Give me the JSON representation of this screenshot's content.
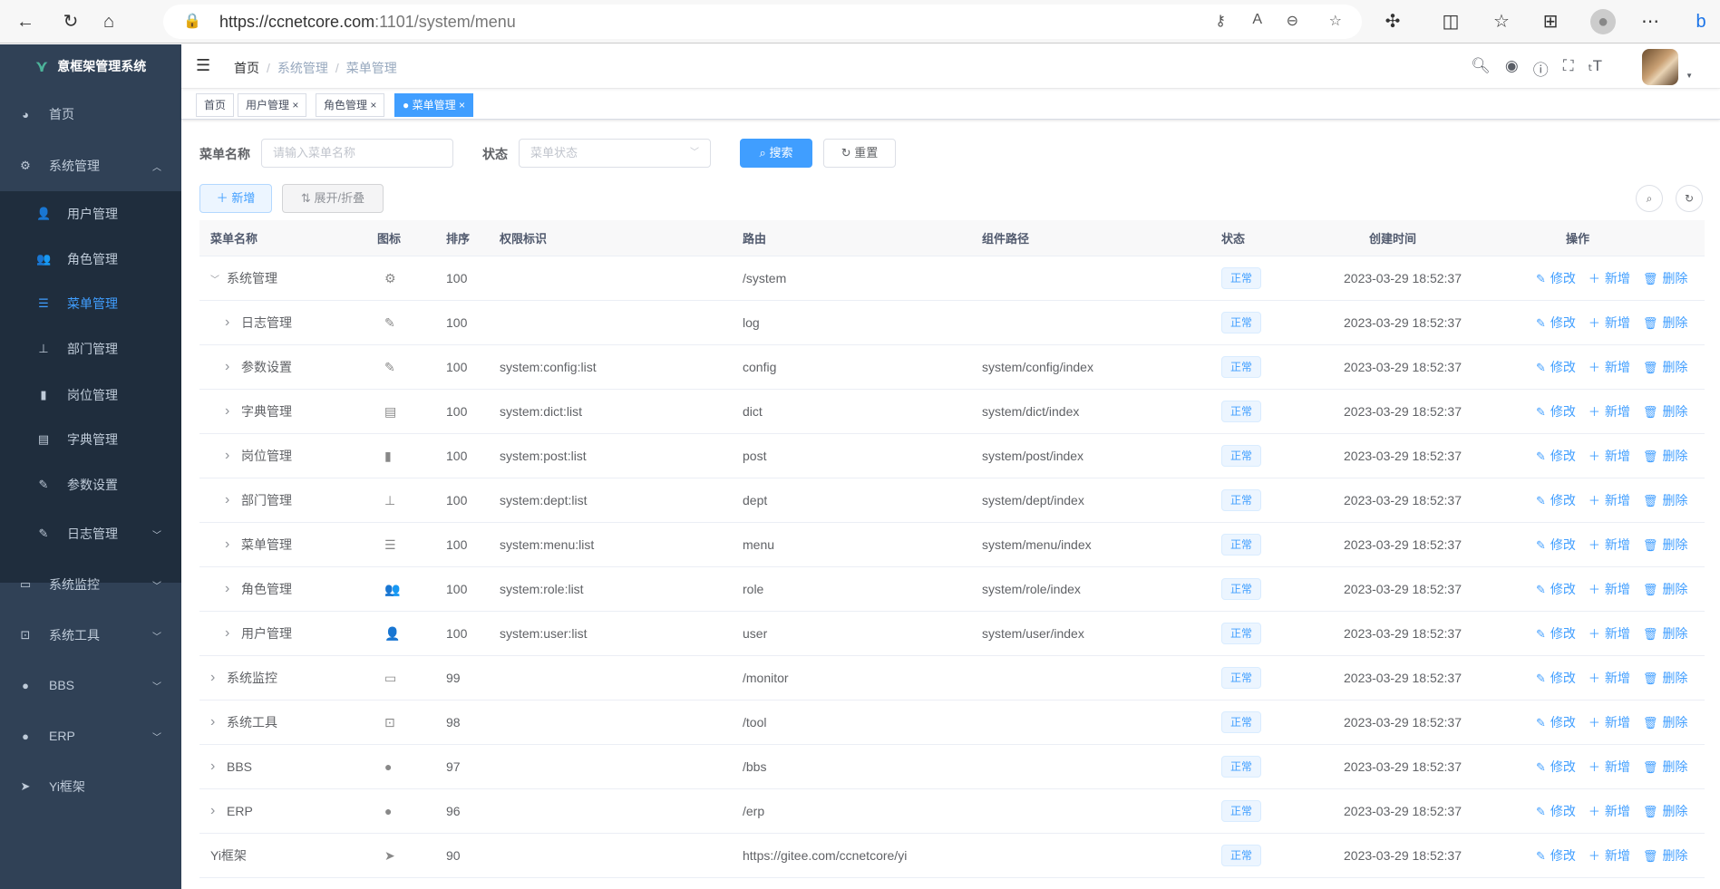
{
  "browser": {
    "url_host": "https://ccnetcore.com",
    "url_path": ":1101/system/menu"
  },
  "sidebar": {
    "title": "意框架管理系统",
    "items": [
      {
        "label": "首页",
        "icon": "dashboard-icon",
        "glyph": "◕",
        "level": "top",
        "arrow": ""
      },
      {
        "label": "系统管理",
        "icon": "gear-icon",
        "glyph": "⚙",
        "level": "top",
        "arrow": "︿",
        "open": true
      },
      {
        "label": "用户管理",
        "icon": "user-icon",
        "glyph": "👤",
        "level": "child",
        "arrow": ""
      },
      {
        "label": "角色管理",
        "icon": "peoples-icon",
        "glyph": "👥",
        "level": "child",
        "arrow": ""
      },
      {
        "label": "菜单管理",
        "icon": "tree-table-icon",
        "glyph": "☰",
        "level": "child",
        "arrow": "",
        "active": true
      },
      {
        "label": "部门管理",
        "icon": "tree-icon",
        "glyph": "⊥",
        "level": "child",
        "arrow": ""
      },
      {
        "label": "岗位管理",
        "icon": "post-icon",
        "glyph": "▮",
        "level": "child",
        "arrow": ""
      },
      {
        "label": "字典管理",
        "icon": "dict-icon",
        "glyph": "▤",
        "level": "child",
        "arrow": ""
      },
      {
        "label": "参数设置",
        "icon": "edit-icon",
        "glyph": "✎",
        "level": "child",
        "arrow": ""
      },
      {
        "label": "日志管理",
        "icon": "log-icon",
        "glyph": "✎",
        "level": "child",
        "arrow": "﹀"
      },
      {
        "label": "系统监控",
        "icon": "monitor-icon",
        "glyph": "▭",
        "level": "top",
        "arrow": "﹀"
      },
      {
        "label": "系统工具",
        "icon": "tool-icon",
        "glyph": "⊡",
        "level": "top",
        "arrow": "﹀"
      },
      {
        "label": "BBS",
        "icon": "globe-icon",
        "glyph": "●",
        "level": "top",
        "arrow": "﹀"
      },
      {
        "label": "ERP",
        "icon": "globe-icon",
        "glyph": "●",
        "level": "top",
        "arrow": "﹀"
      },
      {
        "label": "Yi框架",
        "icon": "send-icon",
        "glyph": "➤",
        "level": "top",
        "arrow": ""
      }
    ]
  },
  "header": {
    "breadcrumb": [
      "首页",
      "系统管理",
      "菜单管理"
    ]
  },
  "tags": [
    {
      "label": "首页",
      "closable": false
    },
    {
      "label": "用户管理",
      "closable": true
    },
    {
      "label": "角色管理",
      "closable": true
    },
    {
      "label": "菜单管理",
      "closable": true,
      "active": true
    }
  ],
  "search": {
    "name_label": "菜单名称",
    "name_placeholder": "请输入菜单名称",
    "status_label": "状态",
    "status_placeholder": "菜单状态",
    "search_btn": "搜索",
    "reset_btn": "重置"
  },
  "toolbar": {
    "add_btn": "新增",
    "toggle_btn": "展开/折叠"
  },
  "table": {
    "columns": [
      "菜单名称",
      "图标",
      "排序",
      "权限标识",
      "路由",
      "组件路径",
      "状态",
      "创建时间",
      "操作"
    ],
    "actions": [
      "修改",
      "新增",
      "删除"
    ],
    "rows": [
      {
        "name": "系统管理",
        "depth": 0,
        "expand": "open",
        "icon": "gear-icon",
        "glyph": "⚙",
        "order": "100",
        "perms": "",
        "path": "/system",
        "component": "",
        "status": "正常",
        "created": "2023-03-29 18:52:37"
      },
      {
        "name": "日志管理",
        "depth": 1,
        "expand": "closed",
        "icon": "log-icon",
        "glyph": "✎",
        "order": "100",
        "perms": "",
        "path": "log",
        "component": "",
        "status": "正常",
        "created": "2023-03-29 18:52:37"
      },
      {
        "name": "参数设置",
        "depth": 1,
        "expand": "closed",
        "icon": "edit-icon",
        "glyph": "✎",
        "order": "100",
        "perms": "system:config:list",
        "path": "config",
        "component": "system/config/index",
        "status": "正常",
        "created": "2023-03-29 18:52:37"
      },
      {
        "name": "字典管理",
        "depth": 1,
        "expand": "closed",
        "icon": "dict-icon",
        "glyph": "▤",
        "order": "100",
        "perms": "system:dict:list",
        "path": "dict",
        "component": "system/dict/index",
        "status": "正常",
        "created": "2023-03-29 18:52:37"
      },
      {
        "name": "岗位管理",
        "depth": 1,
        "expand": "closed",
        "icon": "post-icon",
        "glyph": "▮",
        "order": "100",
        "perms": "system:post:list",
        "path": "post",
        "component": "system/post/index",
        "status": "正常",
        "created": "2023-03-29 18:52:37"
      },
      {
        "name": "部门管理",
        "depth": 1,
        "expand": "closed",
        "icon": "tree-icon",
        "glyph": "⊥",
        "order": "100",
        "perms": "system:dept:list",
        "path": "dept",
        "component": "system/dept/index",
        "status": "正常",
        "created": "2023-03-29 18:52:37"
      },
      {
        "name": "菜单管理",
        "depth": 1,
        "expand": "closed",
        "icon": "tree-table-icon",
        "glyph": "☰",
        "order": "100",
        "perms": "system:menu:list",
        "path": "menu",
        "component": "system/menu/index",
        "status": "正常",
        "created": "2023-03-29 18:52:37"
      },
      {
        "name": "角色管理",
        "depth": 1,
        "expand": "closed",
        "icon": "peoples-icon",
        "glyph": "👥",
        "order": "100",
        "perms": "system:role:list",
        "path": "role",
        "component": "system/role/index",
        "status": "正常",
        "created": "2023-03-29 18:52:37"
      },
      {
        "name": "用户管理",
        "depth": 1,
        "expand": "closed",
        "icon": "user-icon",
        "glyph": "👤",
        "order": "100",
        "perms": "system:user:list",
        "path": "user",
        "component": "system/user/index",
        "status": "正常",
        "created": "2023-03-29 18:52:37"
      },
      {
        "name": "系统监控",
        "depth": 0,
        "expand": "closed",
        "icon": "monitor-icon",
        "glyph": "▭",
        "order": "99",
        "perms": "",
        "path": "/monitor",
        "component": "",
        "status": "正常",
        "created": "2023-03-29 18:52:37"
      },
      {
        "name": "系统工具",
        "depth": 0,
        "expand": "closed",
        "icon": "tool-icon",
        "glyph": "⊡",
        "order": "98",
        "perms": "",
        "path": "/tool",
        "component": "",
        "status": "正常",
        "created": "2023-03-29 18:52:37"
      },
      {
        "name": "BBS",
        "depth": 0,
        "expand": "closed",
        "icon": "globe-icon",
        "glyph": "●",
        "order": "97",
        "perms": "",
        "path": "/bbs",
        "component": "",
        "status": "正常",
        "created": "2023-03-29 18:52:37"
      },
      {
        "name": "ERP",
        "depth": 0,
        "expand": "closed",
        "icon": "globe-icon",
        "glyph": "●",
        "order": "96",
        "perms": "",
        "path": "/erp",
        "component": "",
        "status": "正常",
        "created": "2023-03-29 18:52:37"
      },
      {
        "name": "Yi框架",
        "depth": 0,
        "expand": "none",
        "icon": "send-icon",
        "glyph": "➤",
        "order": "90",
        "perms": "",
        "path": "https://gitee.com/ccnetcore/yi",
        "component": "",
        "status": "正常",
        "created": "2023-03-29 18:52:37"
      }
    ]
  },
  "colors": {
    "primary": "#409eff",
    "sidebar": "#304156",
    "submenu": "#1f2d3d"
  }
}
